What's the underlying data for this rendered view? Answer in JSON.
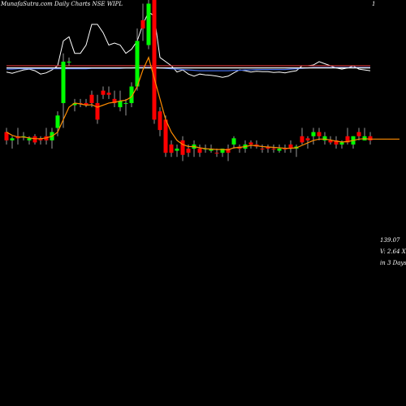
{
  "header": {
    "title": "MunafaSutra.com Daily Charts NSE WIPL",
    "right_mark": "1"
  },
  "readout": {
    "price": "139.07",
    "volume": "V: 2.64  X",
    "period": "in 3 Days"
  },
  "colors": {
    "background": "#000000",
    "up": "#00ff00",
    "down": "#ff0000",
    "ma_short": "#ff8c00",
    "line_white": "#ffffff",
    "line_blue": "#4169e1",
    "line_red": "#cc3333"
  },
  "chart_data": {
    "type": "candlestick",
    "title": "MunafaSutra.com Daily Charts NSE WIPL",
    "ylabel": "",
    "xlabel": "",
    "ylim": [
      102,
      151
    ],
    "y_ticks": [
      "139.07"
    ],
    "candles": [
      {
        "o": 125,
        "h": 126,
        "l": 122,
        "c": 123,
        "dir": "down"
      },
      {
        "o": 123,
        "h": 124,
        "l": 121,
        "c": 123.5,
        "dir": "up"
      },
      {
        "o": 124,
        "h": 126,
        "l": 122,
        "c": 123.5,
        "dir": "down"
      },
      {
        "o": 124,
        "h": 125,
        "l": 123,
        "c": 124,
        "dir": "up"
      },
      {
        "o": 123,
        "h": 124,
        "l": 122,
        "c": 123.5,
        "dir": "up"
      },
      {
        "o": 124,
        "h": 124.5,
        "l": 122,
        "c": 122.5,
        "dir": "down"
      },
      {
        "o": 123,
        "h": 124,
        "l": 122,
        "c": 123.5,
        "dir": "down"
      },
      {
        "o": 123,
        "h": 126,
        "l": 122,
        "c": 124,
        "dir": "down"
      },
      {
        "o": 123,
        "h": 126,
        "l": 121,
        "c": 125,
        "dir": "up"
      },
      {
        "o": 126,
        "h": 130,
        "l": 124,
        "c": 129,
        "dir": "up"
      },
      {
        "o": 132,
        "h": 144,
        "l": 126,
        "c": 142,
        "dir": "up"
      },
      {
        "o": 142,
        "h": 143,
        "l": 141,
        "c": 142,
        "dir": "up"
      },
      {
        "o": 132,
        "h": 133,
        "l": 130,
        "c": 131.5,
        "dir": "up"
      },
      {
        "o": 132,
        "h": 133,
        "l": 131,
        "c": 132,
        "dir": "down"
      },
      {
        "o": 132,
        "h": 133,
        "l": 131,
        "c": 131.5,
        "dir": "down"
      },
      {
        "o": 134,
        "h": 135,
        "l": 131,
        "c": 132,
        "dir": "down"
      },
      {
        "o": 132,
        "h": 134,
        "l": 127,
        "c": 128,
        "dir": "down"
      },
      {
        "o": 135,
        "h": 136,
        "l": 133,
        "c": 134,
        "dir": "down"
      },
      {
        "o": 134,
        "h": 136,
        "l": 133,
        "c": 134.5,
        "dir": "down"
      },
      {
        "o": 133,
        "h": 135,
        "l": 131,
        "c": 132,
        "dir": "down"
      },
      {
        "o": 131,
        "h": 135,
        "l": 130,
        "c": 132.5,
        "dir": "up"
      },
      {
        "o": 132,
        "h": 133,
        "l": 129,
        "c": 132,
        "dir": "up"
      },
      {
        "o": 132,
        "h": 137,
        "l": 131,
        "c": 136,
        "dir": "up"
      },
      {
        "o": 136,
        "h": 150,
        "l": 135,
        "c": 147,
        "dir": "up"
      },
      {
        "o": 152,
        "h": 156,
        "l": 147,
        "c": 150,
        "dir": "down"
      },
      {
        "o": 146,
        "h": 158,
        "l": 145,
        "c": 156,
        "dir": "up"
      },
      {
        "o": 157,
        "h": 158,
        "l": 127,
        "c": 128,
        "dir": "down"
      },
      {
        "o": 130,
        "h": 131,
        "l": 124,
        "c": 125.5,
        "dir": "down"
      },
      {
        "o": 128,
        "h": 129,
        "l": 119,
        "c": 120,
        "dir": "down"
      },
      {
        "o": 122,
        "h": 123,
        "l": 119,
        "c": 120,
        "dir": "down"
      },
      {
        "o": 121,
        "h": 122,
        "l": 119,
        "c": 120.5,
        "dir": "up"
      },
      {
        "o": 123,
        "h": 124,
        "l": 118,
        "c": 119.5,
        "dir": "down"
      },
      {
        "o": 121,
        "h": 122,
        "l": 119,
        "c": 120,
        "dir": "down"
      },
      {
        "o": 121,
        "h": 123,
        "l": 119,
        "c": 122,
        "dir": "up"
      },
      {
        "o": 121,
        "h": 122,
        "l": 119,
        "c": 120,
        "dir": "down"
      },
      {
        "o": 121,
        "h": 122,
        "l": 120,
        "c": 121,
        "dir": "up"
      },
      {
        "o": 121,
        "h": 122,
        "l": 120,
        "c": 120.5,
        "dir": "up"
      },
      {
        "o": 120,
        "h": 121,
        "l": 119,
        "c": 120,
        "dir": "down"
      },
      {
        "o": 120,
        "h": 121,
        "l": 119,
        "c": 121,
        "dir": "up"
      },
      {
        "o": 121,
        "h": 122,
        "l": 118,
        "c": 120,
        "dir": "down"
      },
      {
        "o": 122,
        "h": 124,
        "l": 121,
        "c": 123.5,
        "dir": "up"
      },
      {
        "o": 121,
        "h": 122,
        "l": 120,
        "c": 121.5,
        "dir": "down"
      },
      {
        "o": 121,
        "h": 123,
        "l": 120,
        "c": 122,
        "dir": "up"
      },
      {
        "o": 122,
        "h": 123,
        "l": 121,
        "c": 122.5,
        "dir": "down"
      },
      {
        "o": 122,
        "h": 123,
        "l": 121,
        "c": 121.5,
        "dir": "down"
      },
      {
        "o": 121,
        "h": 122,
        "l": 120,
        "c": 121,
        "dir": "down"
      },
      {
        "o": 121,
        "h": 122,
        "l": 120,
        "c": 121.5,
        "dir": "down"
      },
      {
        "o": 121,
        "h": 122,
        "l": 120,
        "c": 121,
        "dir": "down"
      },
      {
        "o": 121,
        "h": 122,
        "l": 120,
        "c": 120.5,
        "dir": "up"
      },
      {
        "o": 121,
        "h": 122,
        "l": 120,
        "c": 121,
        "dir": "down"
      },
      {
        "o": 122,
        "h": 123,
        "l": 120,
        "c": 121,
        "dir": "down"
      },
      {
        "o": 121,
        "h": 122,
        "l": 119,
        "c": 121.5,
        "dir": "up"
      },
      {
        "o": 124,
        "h": 126,
        "l": 122,
        "c": 122.5,
        "dir": "down"
      },
      {
        "o": 123,
        "h": 124,
        "l": 121,
        "c": 123.5,
        "dir": "down"
      },
      {
        "o": 124,
        "h": 126,
        "l": 122,
        "c": 125,
        "dir": "up"
      },
      {
        "o": 125,
        "h": 126,
        "l": 123,
        "c": 124,
        "dir": "down"
      },
      {
        "o": 124,
        "h": 125,
        "l": 122,
        "c": 123,
        "dir": "up"
      },
      {
        "o": 123,
        "h": 124,
        "l": 122,
        "c": 122.5,
        "dir": "down"
      },
      {
        "o": 123,
        "h": 124,
        "l": 121,
        "c": 122,
        "dir": "down"
      },
      {
        "o": 122,
        "h": 123,
        "l": 121,
        "c": 122.5,
        "dir": "up"
      },
      {
        "o": 124,
        "h": 126,
        "l": 122,
        "c": 122.5,
        "dir": "down"
      },
      {
        "o": 122,
        "h": 124,
        "l": 121,
        "c": 124,
        "dir": "up"
      },
      {
        "o": 124,
        "h": 126,
        "l": 123,
        "c": 125,
        "dir": "down"
      },
      {
        "o": 124,
        "h": 126,
        "l": 123,
        "c": 123,
        "dir": "up"
      },
      {
        "o": 124,
        "h": 125,
        "l": 122,
        "c": 123,
        "dir": "down"
      }
    ],
    "ma_short": [
      125,
      124.2,
      123.8,
      123.8,
      123.6,
      123.4,
      123.4,
      123.6,
      124,
      125,
      128,
      131,
      132,
      131.8,
      131.5,
      131.6,
      131,
      131.5,
      132,
      132.2,
      132.5,
      132.7,
      133.5,
      136,
      140,
      143,
      138,
      133,
      128,
      125,
      123,
      122,
      121.5,
      121.5,
      121.2,
      121,
      120.9,
      120.8,
      120.8,
      120.7,
      121.2,
      121.3,
      121.5,
      121.8,
      121.7,
      121.5,
      121.4,
      121.3,
      121.2,
      121.1,
      121.1,
      121.2,
      121.8,
      122.4,
      123,
      123.3,
      123.3,
      123.1,
      122.8,
      122.6,
      122.7,
      123,
      123.3,
      123.4,
      123.3
    ],
    "long_lines": [
      {
        "name": "",
        "color": "#ffffff",
        "values": [
          139.5,
          139.2,
          139.6,
          140,
          140.2,
          139.8,
          139,
          139.3,
          140,
          141,
          147,
          148,
          144,
          144,
          146,
          151,
          151,
          149,
          146,
          146.5,
          146,
          144,
          145,
          147,
          151,
          154,
          153,
          143,
          142,
          141,
          139.5,
          140,
          139,
          138.5,
          139,
          138.8,
          138.7,
          138.5,
          138.2,
          138.5,
          139.3,
          140,
          139.8,
          139.5,
          139.7,
          139.6,
          139.6,
          139.4,
          139.5,
          139.3,
          139.6,
          139.8,
          141,
          141,
          141.2,
          142,
          141.5,
          141,
          140.5,
          140.2,
          140.5,
          141,
          140.2,
          140,
          139.8
        ]
      },
      {
        "name": "",
        "color": "#4169e1",
        "values": [
          140.2,
          140.2,
          140.3,
          140.3,
          140.3,
          140.3,
          140.3,
          140.3,
          140.3,
          140.3,
          140.3,
          140.3,
          140.3,
          140.3,
          140.3,
          140.4,
          140.4,
          140.4,
          140.4,
          140.4,
          140.4,
          140.5,
          140.5,
          140.6,
          140.6,
          140.6,
          140.6,
          140.5,
          140.4,
          140.3,
          140.2,
          140.1,
          140,
          139.9,
          139.8,
          139.8,
          139.8,
          139.8,
          139.8,
          139.8,
          139.9,
          139.9,
          140,
          140,
          140.1,
          140.1,
          140.1,
          140.1,
          140.1,
          140.1,
          140.2,
          140.3,
          140.4,
          140.5,
          140.6,
          140.6,
          140.6,
          140.6,
          140.6,
          140.6,
          140.6,
          140.6,
          140.6,
          140.6,
          140.6
        ]
      },
      {
        "name": "",
        "color": "#cc3333",
        "values": [
          141,
          141,
          141,
          141,
          141,
          141,
          141,
          141,
          141,
          141,
          141,
          141,
          141,
          141,
          141,
          141,
          141,
          141,
          141,
          141,
          141,
          141,
          141,
          141,
          141,
          141,
          141,
          141,
          141,
          141,
          141,
          141,
          141,
          141,
          141,
          141,
          141,
          141,
          141,
          141,
          141,
          141,
          141,
          141,
          141,
          141,
          141,
          141,
          141,
          141,
          141,
          141,
          141,
          141,
          141,
          141,
          141,
          141,
          141,
          141,
          141,
          141,
          141,
          141,
          141
        ]
      },
      {
        "name": "",
        "color": "#ffffff",
        "values": [
          140.5,
          140.5,
          140.5,
          140.5,
          140.5,
          140.5,
          140.5,
          140.5,
          140.5,
          140.5,
          140.5,
          140.5,
          140.5,
          140.5,
          140.5,
          140.5,
          140.5,
          140.5,
          140.5,
          140.5,
          140.5,
          140.5,
          140.5,
          140.5,
          140.5,
          140.5,
          140.5,
          140.5,
          140.5,
          140.5,
          140.5,
          140.5,
          140.5,
          140.5,
          140.5,
          140.5,
          140.5,
          140.5,
          140.5,
          140.5,
          140.5,
          140.5,
          140.5,
          140.5,
          140.5,
          140.5,
          140.5,
          140.5,
          140.5,
          140.5,
          140.5,
          140.5,
          140.5,
          140.5,
          140.5,
          140.5,
          140.5,
          140.5,
          140.5,
          140.5,
          140.5,
          140.5,
          140.5,
          140.5,
          140.5
        ]
      }
    ],
    "grid": false,
    "legend": "none"
  }
}
